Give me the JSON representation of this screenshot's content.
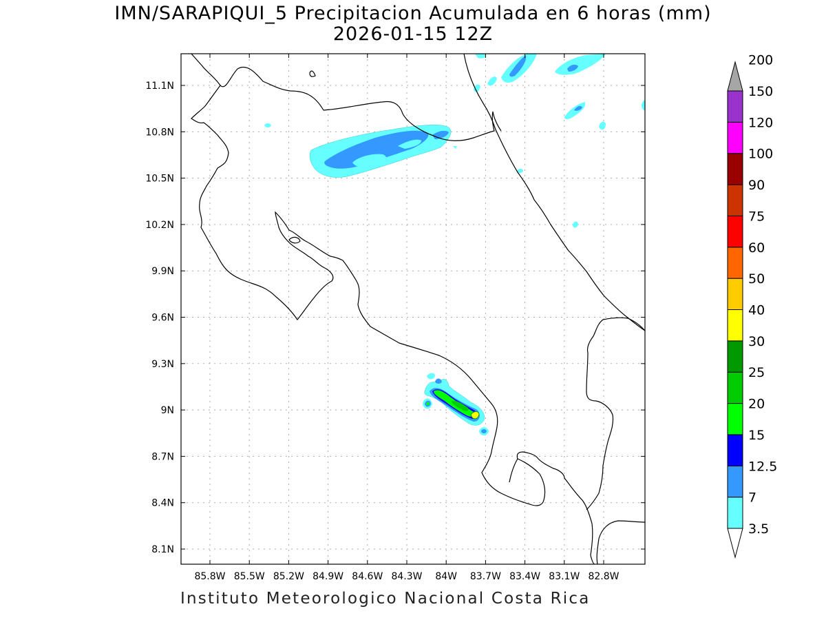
{
  "map": {
    "title_line1": "IMN/SARAPIQUI_5 Precipitacion Acumulada en 6 horas (mm)",
    "title_line2": "2026-01-15 12Z",
    "footer": "Instituto Meteorologico Nacional Costa Rica",
    "lat_ticks": [
      "11.1N",
      "10.8N",
      "10.5N",
      "10.2N",
      "9.9N",
      "9.6N",
      "9.3N",
      "9N",
      "8.7N",
      "8.4N",
      "8.1N"
    ],
    "lon_ticks": [
      "85.8W",
      "85.5W",
      "85.2W",
      "84.9W",
      "84.6W",
      "84.3W",
      "84W",
      "83.7W",
      "83.4W",
      "83.1W",
      "82.8W"
    ],
    "colorbar": {
      "levels": [
        "3.5",
        "7",
        "12.5",
        "15",
        "20",
        "25",
        "30",
        "40",
        "50",
        "60",
        "75",
        "90",
        "100",
        "120",
        "150",
        "200"
      ],
      "colors": [
        "#66ffff",
        "#3399ff",
        "#0000ff",
        "#00ff00",
        "#00cc00",
        "#009900",
        "#ffff00",
        "#ffcc00",
        "#ff6600",
        "#ff0000",
        "#cc3300",
        "#990000",
        "#ff00ff",
        "#9933cc",
        "#f2f2f2",
        "#a6a6a6"
      ]
    }
  }
}
